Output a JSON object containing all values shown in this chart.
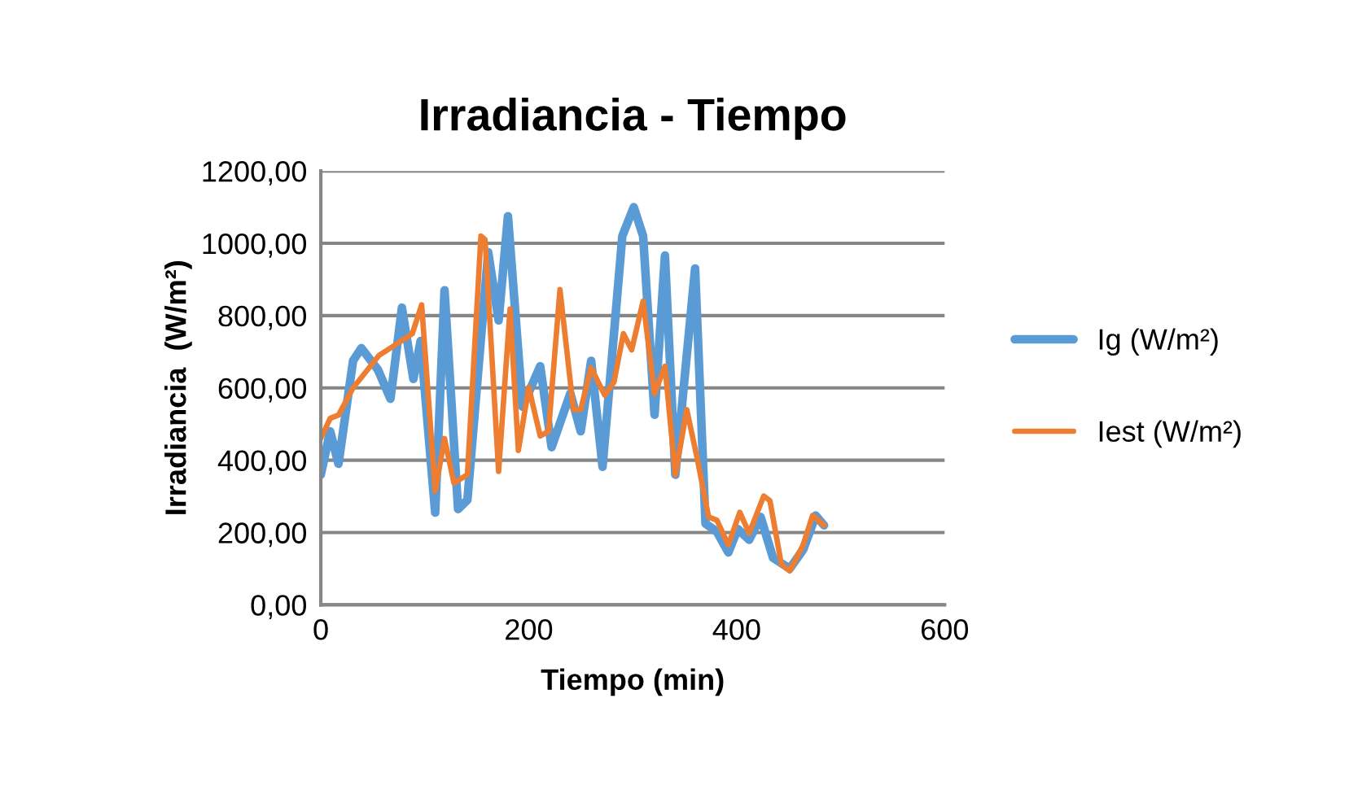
{
  "chart_data": {
    "type": "line",
    "title": "Irradiancia - Tiempo",
    "xlabel": "Tiempo (min)",
    "ylabel": "Irradiancia  (W/m²)",
    "xlim": [
      0,
      600
    ],
    "xticks": [
      0,
      200,
      400,
      600
    ],
    "ylim": [
      0,
      1200
    ],
    "yticks": [
      {
        "value": 0,
        "label": "0,00"
      },
      {
        "value": 200,
        "label": "200,00"
      },
      {
        "value": 400,
        "label": "400,00"
      },
      {
        "value": 600,
        "label": "600,00"
      },
      {
        "value": 800,
        "label": "800,00"
      },
      {
        "value": 1000,
        "label": "1000,00"
      },
      {
        "value": 1200,
        "label": "1200,00"
      }
    ],
    "grid": "y",
    "legend": "right",
    "marker": "none",
    "line_style": "solid",
    "series": [
      {
        "name": "Ig (W/m²)",
        "color": "#5b9bd5",
        "x": [
          0,
          9,
          17,
          31,
          39,
          55,
          67,
          78,
          89,
          96,
          110,
          119,
          132,
          141,
          161,
          171,
          180,
          194,
          211,
          222,
          240,
          250,
          260,
          271,
          290,
          301,
          310,
          321,
          331,
          341,
          360,
          370,
          381,
          392,
          401,
          412,
          423,
          435,
          451,
          464,
          476,
          484
        ],
        "values": [
          360,
          480,
          390,
          675,
          710,
          650,
          570,
          822,
          625,
          730,
          255,
          870,
          265,
          290,
          975,
          787,
          1075,
          548,
          660,
          436,
          585,
          480,
          675,
          382,
          1020,
          1100,
          1020,
          526,
          966,
          360,
          930,
          225,
          202,
          145,
          210,
          180,
          243,
          130,
          100,
          153,
          247,
          220
        ]
      },
      {
        "name": "Iest (W/m²)",
        "color": "#ed7d31",
        "x": [
          0,
          9,
          17,
          31,
          56,
          83,
          88,
          97,
          110,
          119,
          128,
          141,
          154,
          158,
          171,
          182,
          190,
          200,
          211,
          219,
          230,
          243,
          250,
          260,
          273,
          282,
          291,
          299,
          310,
          321,
          331,
          341,
          352,
          362,
          373,
          381,
          392,
          403,
          412,
          426,
          432,
          443,
          451,
          464,
          473,
          484
        ],
        "values": [
          460,
          516,
          525,
          600,
          690,
          740,
          750,
          830,
          315,
          460,
          337,
          360,
          1020,
          1010,
          369,
          818,
          427,
          602,
          467,
          480,
          872,
          540,
          540,
          656,
          580,
          616,
          750,
          705,
          840,
          584,
          660,
          360,
          540,
          405,
          243,
          234,
          166,
          256,
          198,
          301,
          288,
          112,
          94,
          166,
          247,
          220
        ]
      }
    ]
  }
}
